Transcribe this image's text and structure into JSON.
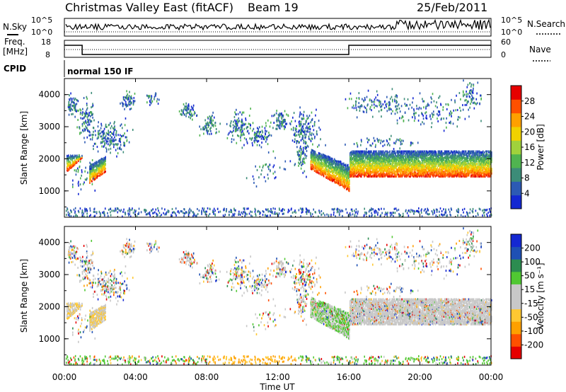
{
  "header": {
    "title": "Christmas Valley East (fitACF)",
    "beam": "Beam 19",
    "date": "25/Feb/2011"
  },
  "status": {
    "nsky_label": "N.Sky",
    "nsky_ticks": [
      "10^5",
      "10^0"
    ],
    "nsearch_label": "N.Search",
    "freq_label_1": "Freq.",
    "freq_label_2": "[MHz]",
    "freq_ticks": [
      "18",
      "8"
    ],
    "nave_label": "Nave",
    "nave_ticks": [
      "60",
      "0"
    ],
    "cpid_label": "CPID",
    "cpid_value": "normal 150 IF"
  },
  "colors": {
    "power": [
      "#1428d2",
      "#2c5ab4",
      "#3c8c78",
      "#50b450",
      "#a0d23c",
      "#f0d200",
      "#ffa000",
      "#ff5000",
      "#e60000"
    ],
    "velocity": [
      "#e60000",
      "#ff5000",
      "#ffa000",
      "#ffc832",
      "#c8c8c8",
      "#c8c8c8",
      "#50c832",
      "#2c8c50",
      "#1e50b4",
      "#1428d2"
    ],
    "gray": "#c8c8be"
  },
  "chart_data": [
    {
      "type": "heatmap",
      "name": "power",
      "ylabel": "Slant Range [km]",
      "yticks": [
        "4000",
        "3000",
        "2000",
        "1000"
      ],
      "ytick_values": [
        4000,
        3000,
        2000,
        1000
      ],
      "ylim": [
        180,
        4500
      ],
      "colorbar_label": "Power [dB]",
      "colorbar_ticks": [
        "28",
        "24",
        "20",
        "16",
        "12",
        "8",
        "4"
      ],
      "colorbar_range": [
        0,
        32
      ]
    },
    {
      "type": "heatmap",
      "name": "velocity",
      "ylabel": "Slant Range [km]",
      "yticks": [
        "4000",
        "3000",
        "2000",
        "1000"
      ],
      "ytick_values": [
        4000,
        3000,
        2000,
        1000
      ],
      "ylim": [
        180,
        4500
      ],
      "colorbar_label": "Velocity [m s⁻¹]",
      "colorbar_ticks": [
        "200",
        "100",
        "50",
        "15",
        "-15",
        "-50",
        "-100",
        "-200"
      ]
    }
  ],
  "xaxis": {
    "label": "Time UT",
    "ticks": [
      "00:00",
      "04:00",
      "08:00",
      "12:00",
      "16:00",
      "20:00",
      "00:00"
    ],
    "tick_hours": [
      0,
      4,
      8,
      12,
      16,
      20,
      24
    ]
  }
}
